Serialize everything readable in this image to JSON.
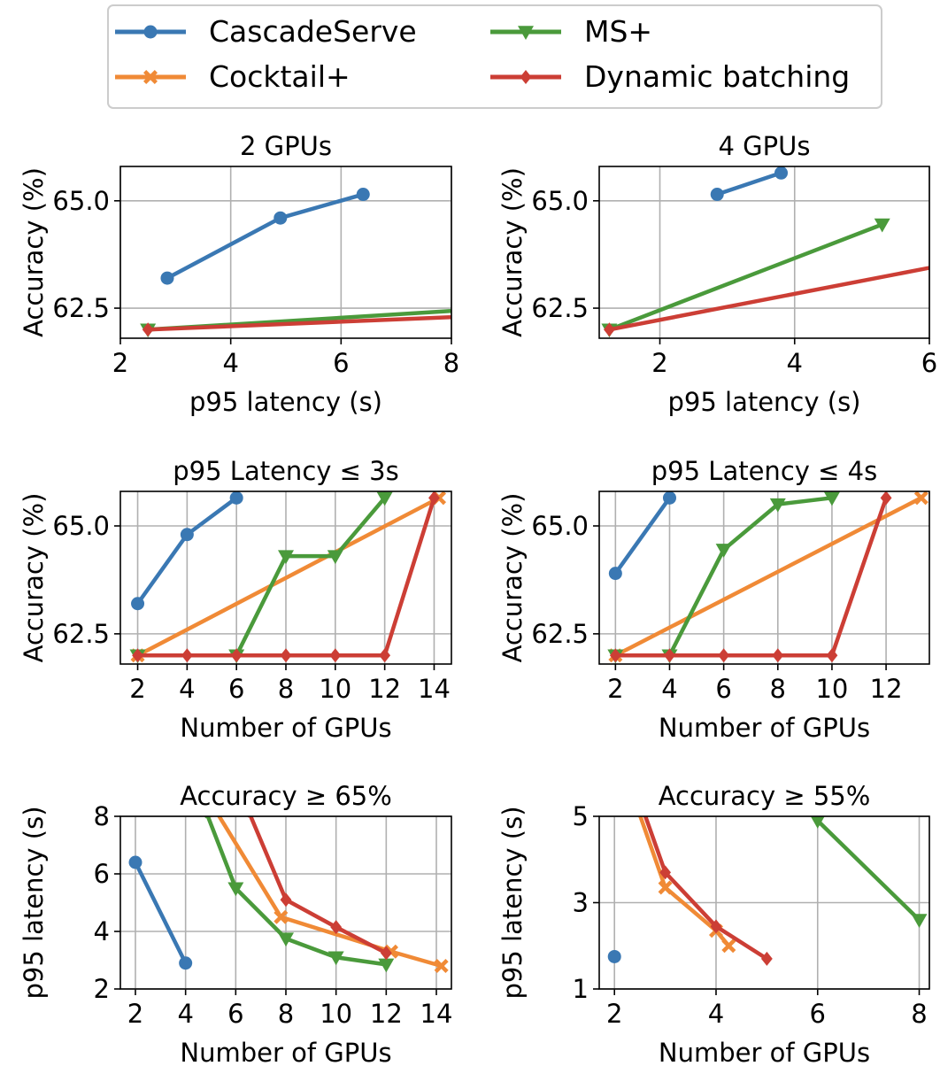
{
  "legend": {
    "items": [
      {
        "name": "CascadeServe",
        "color": "#3a78b3",
        "marker": "circle"
      },
      {
        "name": "Cocktail+",
        "color": "#f08a36",
        "marker": "x"
      },
      {
        "name": "MS+",
        "color": "#4a9a3b",
        "marker": "triangle-down"
      },
      {
        "name": "Dynamic batching",
        "color": "#cc3e35",
        "marker": "diamond"
      }
    ]
  },
  "chart_data": [
    {
      "type": "line",
      "title": "2 GPUs",
      "xlabel": "p95 latency (s)",
      "ylabel": "Accuracy (%)",
      "xlim": [
        2,
        8
      ],
      "ylim": [
        61.8,
        65.8
      ],
      "xticks": [
        2,
        4,
        6,
        8
      ],
      "yticks": [
        62.5,
        65.0
      ],
      "grid": true,
      "series": [
        {
          "name": "CascadeServe",
          "x": [
            2.85,
            4.9,
            6.4
          ],
          "y": [
            63.2,
            64.6,
            65.15
          ]
        },
        {
          "name": "MS+",
          "x": [
            2.5,
            8.2
          ],
          "y": [
            62.0,
            62.45
          ]
        },
        {
          "name": "Dynamic batching",
          "x": [
            2.5,
            8.2
          ],
          "y": [
            62.0,
            62.3
          ]
        }
      ]
    },
    {
      "type": "line",
      "title": "4 GPUs",
      "xlabel": "p95 latency (s)",
      "ylabel": "Accuracy (%)",
      "xlim": [
        1.1,
        6
      ],
      "ylim": [
        61.8,
        65.8
      ],
      "xticks": [
        2,
        4,
        6
      ],
      "yticks": [
        62.5,
        65.0
      ],
      "grid": true,
      "series": [
        {
          "name": "CascadeServe",
          "x": [
            2.85,
            3.8
          ],
          "y": [
            65.15,
            65.65
          ]
        },
        {
          "name": "MS+",
          "x": [
            1.25,
            5.3
          ],
          "y": [
            62.0,
            64.45
          ]
        },
        {
          "name": "Dynamic batching",
          "x": [
            1.25,
            6.2
          ],
          "y": [
            62.0,
            63.5
          ]
        }
      ]
    },
    {
      "type": "line",
      "title": "p95 Latency  ≤  3s",
      "xlabel": "Number of GPUs",
      "ylabel": "Accuracy (%)",
      "xlim": [
        1.3,
        14.7
      ],
      "ylim": [
        61.8,
        65.8
      ],
      "xticks": [
        2,
        4,
        6,
        8,
        10,
        12,
        14
      ],
      "yticks": [
        62.5,
        65.0
      ],
      "grid": true,
      "series": [
        {
          "name": "CascadeServe",
          "x": [
            2,
            4,
            6
          ],
          "y": [
            63.2,
            64.8,
            65.65
          ]
        },
        {
          "name": "Cocktail+",
          "x": [
            2,
            14.2
          ],
          "y": [
            62.0,
            65.65
          ]
        },
        {
          "name": "MS+",
          "x": [
            2,
            6,
            8,
            10,
            12
          ],
          "y": [
            62.0,
            62.0,
            64.3,
            64.3,
            65.65
          ]
        },
        {
          "name": "Dynamic batching",
          "x": [
            2,
            4,
            6,
            8,
            10,
            12,
            14
          ],
          "y": [
            62.0,
            62.0,
            62.0,
            62.0,
            62.0,
            62.0,
            65.65
          ]
        }
      ]
    },
    {
      "type": "line",
      "title": "p95 Latency  ≤  4s",
      "xlabel": "Number of GPUs",
      "ylabel": "Accuracy (%)",
      "xlim": [
        1.4,
        13.6
      ],
      "ylim": [
        61.8,
        65.8
      ],
      "xticks": [
        2,
        4,
        6,
        8,
        10,
        12
      ],
      "yticks": [
        62.5,
        65.0
      ],
      "grid": true,
      "series": [
        {
          "name": "CascadeServe",
          "x": [
            2,
            4
          ],
          "y": [
            63.9,
            65.65
          ]
        },
        {
          "name": "Cocktail+",
          "x": [
            2,
            13.3
          ],
          "y": [
            62.0,
            65.65
          ]
        },
        {
          "name": "MS+",
          "x": [
            2,
            4,
            6,
            8,
            10
          ],
          "y": [
            62.0,
            62.0,
            64.45,
            65.5,
            65.65
          ]
        },
        {
          "name": "Dynamic batching",
          "x": [
            2,
            4,
            6,
            8,
            10,
            12
          ],
          "y": [
            62.0,
            62.0,
            62.0,
            62.0,
            62.0,
            65.65
          ]
        }
      ]
    },
    {
      "type": "line",
      "title": "Accuracy  ≥  65%",
      "xlabel": "Number of GPUs",
      "ylabel": "p95 latency (s)",
      "xlim": [
        1.4,
        14.6
      ],
      "ylim": [
        2,
        8
      ],
      "xticks": [
        2,
        4,
        6,
        8,
        10,
        12,
        14
      ],
      "yticks": [
        2,
        4,
        6,
        8
      ],
      "grid": true,
      "series": [
        {
          "name": "CascadeServe",
          "x": [
            2,
            4
          ],
          "y": [
            6.4,
            2.9
          ]
        },
        {
          "name": "Cocktail+",
          "x": [
            5.2,
            7.8,
            12.2,
            14.2
          ],
          "y": [
            8.2,
            4.5,
            3.3,
            2.8
          ]
        },
        {
          "name": "MS+",
          "x": [
            4.8,
            6,
            8,
            10,
            12
          ],
          "y": [
            8.2,
            5.5,
            3.75,
            3.1,
            2.85
          ]
        },
        {
          "name": "Dynamic batching",
          "x": [
            6.5,
            8,
            10,
            12
          ],
          "y": [
            8.2,
            5.1,
            4.15,
            3.25
          ]
        }
      ]
    },
    {
      "type": "line",
      "title": "Accuracy  ≥  55%",
      "xlabel": "Number of GPUs",
      "ylabel": "p95 latency (s)",
      "xlim": [
        1.7,
        8.2
      ],
      "ylim": [
        1,
        5
      ],
      "xticks": [
        2,
        4,
        6,
        8
      ],
      "yticks": [
        1,
        3,
        5
      ],
      "grid": true,
      "series": [
        {
          "name": "CascadeServe",
          "x": [
            2
          ],
          "y": [
            1.75
          ]
        },
        {
          "name": "Cocktail+",
          "x": [
            2.45,
            3,
            4,
            4.25
          ],
          "y": [
            5.2,
            3.35,
            2.35,
            2.0
          ]
        },
        {
          "name": "MS+",
          "x": [
            6,
            8
          ],
          "y": [
            4.9,
            2.6
          ]
        },
        {
          "name": "Dynamic batching",
          "x": [
            2.55,
            3,
            4,
            5
          ],
          "y": [
            5.2,
            3.7,
            2.45,
            1.7
          ]
        }
      ]
    }
  ]
}
